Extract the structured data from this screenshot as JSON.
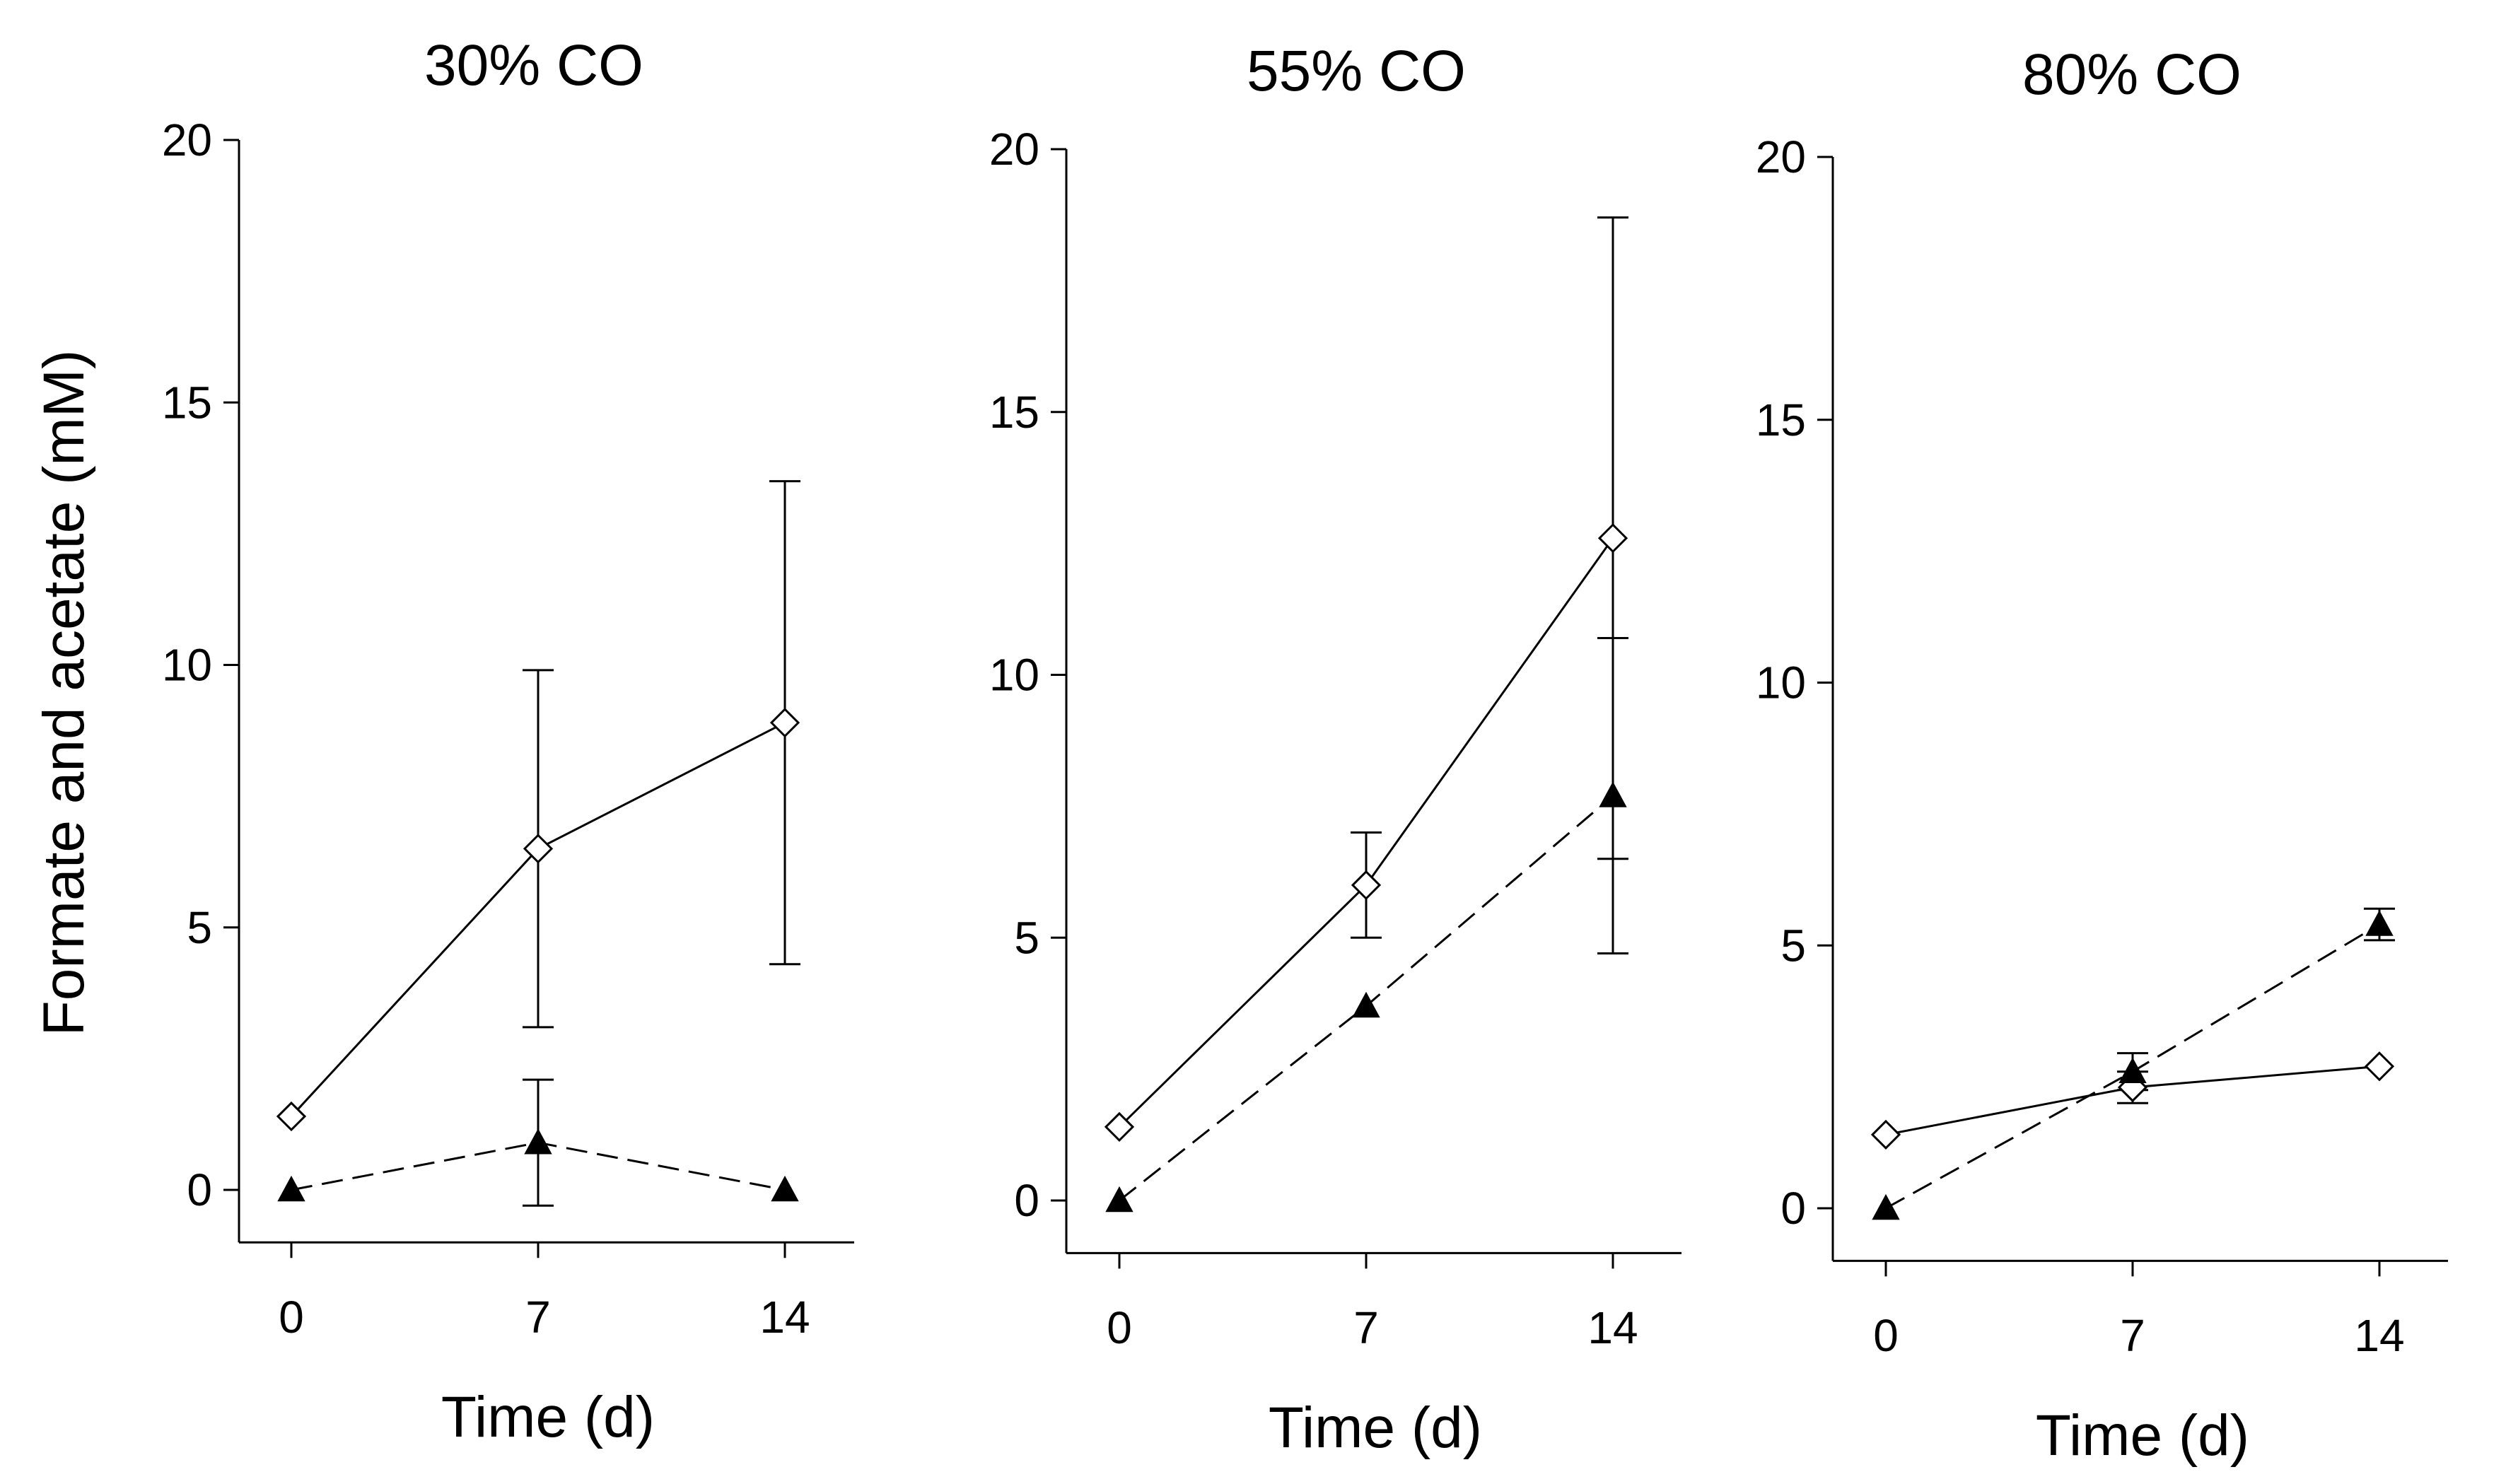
{
  "figure": {
    "ylabel": "Formate and acetate (mM)"
  },
  "chart_data": [
    {
      "type": "line",
      "title": "30% CO",
      "xlabel": "Time (d)",
      "ylabel": "Formate and acetate (mM)",
      "x": [
        0,
        7,
        14
      ],
      "xticks": [
        "0",
        "7",
        "14"
      ],
      "yticks": [
        "0",
        "5",
        "10",
        "15",
        "20"
      ],
      "ylim": [
        -1,
        20
      ],
      "series": [
        {
          "name": "open-diamond-solid",
          "marker": "diamond-open",
          "line": "solid",
          "values": [
            1.4,
            6.5,
            8.9
          ],
          "err": [
            0.1,
            3.4,
            4.6
          ]
        },
        {
          "name": "filled-triangle-dashed",
          "marker": "triangle-filled",
          "line": "dashed",
          "values": [
            0.0,
            0.9,
            0.0
          ],
          "err": [
            0,
            1.2,
            0
          ]
        }
      ]
    },
    {
      "type": "line",
      "title": "55% CO",
      "xlabel": "Time (d)",
      "ylabel": "",
      "x": [
        0,
        7,
        14
      ],
      "xticks": [
        "0",
        "7",
        "14"
      ],
      "yticks": [
        "0",
        "5",
        "10",
        "15",
        "20"
      ],
      "ylim": [
        -1,
        20
      ],
      "series": [
        {
          "name": "open-diamond-solid",
          "marker": "diamond-open",
          "line": "solid",
          "values": [
            1.4,
            6.0,
            12.6
          ],
          "err": [
            0.1,
            1.0,
            6.1
          ]
        },
        {
          "name": "filled-triangle-dashed",
          "marker": "triangle-filled",
          "line": "dashed",
          "values": [
            0.0,
            3.7,
            7.7
          ],
          "err": [
            0,
            0.1,
            3.0
          ]
        }
      ]
    },
    {
      "type": "line",
      "title": "80% CO",
      "xlabel": "Time (d)",
      "ylabel": "",
      "x": [
        0,
        7,
        14
      ],
      "xticks": [
        "0",
        "7",
        "14"
      ],
      "yticks": [
        "0",
        "5",
        "10",
        "15",
        "20"
      ],
      "ylim": [
        -1,
        20
      ],
      "series": [
        {
          "name": "open-diamond-solid",
          "marker": "diamond-open",
          "line": "solid",
          "values": [
            1.4,
            2.3,
            2.7
          ],
          "err": [
            0.1,
            0.3,
            0.15
          ]
        },
        {
          "name": "filled-triangle-dashed",
          "marker": "triangle-filled",
          "line": "dashed",
          "values": [
            0.0,
            2.6,
            5.4
          ],
          "err": [
            0,
            0.35,
            0.3
          ]
        }
      ]
    }
  ]
}
